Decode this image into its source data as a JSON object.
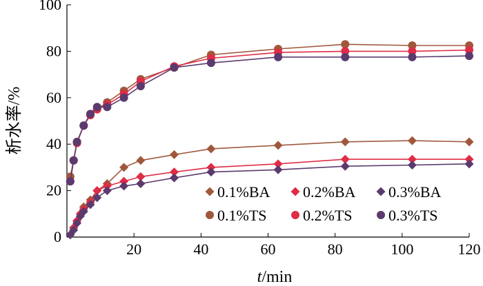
{
  "chart_data": {
    "type": "line",
    "xlabel_italic": "t",
    "xlabel_unit": "/min",
    "ylabel": "析水率/%",
    "xlim": [
      0,
      120
    ],
    "ylim": [
      0,
      100
    ],
    "xticks": [
      20,
      40,
      60,
      80,
      100,
      120
    ],
    "yticks": [
      0,
      20,
      40,
      60,
      80,
      100
    ],
    "grid": false,
    "legend_position": "lower-right",
    "series": [
      {
        "name": "0.1%BA",
        "marker": "diamond",
        "color": "#a0583c",
        "points": [
          [
            1,
            1
          ],
          [
            2,
            4
          ],
          [
            3,
            7
          ],
          [
            4,
            10
          ],
          [
            5,
            13
          ],
          [
            7,
            16
          ],
          [
            9,
            20
          ],
          [
            12,
            23
          ],
          [
            17,
            30
          ],
          [
            22,
            33
          ],
          [
            32,
            35.5
          ],
          [
            43,
            38
          ],
          [
            63,
            39.5
          ],
          [
            83,
            41
          ],
          [
            103,
            41.5
          ],
          [
            120,
            41
          ]
        ]
      },
      {
        "name": "0.2%BA",
        "marker": "diamond",
        "color": "#e02c46",
        "points": [
          [
            1,
            1
          ],
          [
            2,
            4
          ],
          [
            3,
            7
          ],
          [
            4,
            10
          ],
          [
            5,
            12
          ],
          [
            7,
            15
          ],
          [
            9,
            20
          ],
          [
            12,
            22
          ],
          [
            17,
            24
          ],
          [
            22,
            26
          ],
          [
            32,
            28
          ],
          [
            43,
            30
          ],
          [
            63,
            31.5
          ],
          [
            83,
            33.5
          ],
          [
            103,
            33.5
          ],
          [
            120,
            33.5
          ]
        ]
      },
      {
        "name": "0.3%BA",
        "marker": "diamond",
        "color": "#5b3a6e",
        "points": [
          [
            1,
            1
          ],
          [
            2,
            3
          ],
          [
            3,
            6
          ],
          [
            4,
            9
          ],
          [
            5,
            11
          ],
          [
            7,
            14
          ],
          [
            9,
            17
          ],
          [
            12,
            20
          ],
          [
            17,
            22
          ],
          [
            22,
            23
          ],
          [
            32,
            25.5
          ],
          [
            43,
            28
          ],
          [
            63,
            29
          ],
          [
            83,
            30.5
          ],
          [
            103,
            31
          ],
          [
            120,
            31.5
          ]
        ]
      },
      {
        "name": "0.1%TS",
        "marker": "circle",
        "color": "#a0583c",
        "points": [
          [
            1,
            26
          ],
          [
            2,
            33
          ],
          [
            3,
            41
          ],
          [
            5,
            48
          ],
          [
            7,
            53
          ],
          [
            9,
            55
          ],
          [
            12,
            58
          ],
          [
            17,
            63
          ],
          [
            22,
            68
          ],
          [
            32,
            73
          ],
          [
            43,
            78.5
          ],
          [
            63,
            81
          ],
          [
            83,
            83
          ],
          [
            103,
            82.5
          ],
          [
            120,
            82.5
          ]
        ]
      },
      {
        "name": "0.2%TS",
        "marker": "circle",
        "color": "#e02c46",
        "points": [
          [
            1,
            24
          ],
          [
            2,
            33
          ],
          [
            3,
            40.5
          ],
          [
            5,
            48
          ],
          [
            7,
            52.5
          ],
          [
            9,
            55
          ],
          [
            12,
            57
          ],
          [
            17,
            61.5
          ],
          [
            22,
            67
          ],
          [
            32,
            73.5
          ],
          [
            43,
            77
          ],
          [
            63,
            79.5
          ],
          [
            83,
            80
          ],
          [
            103,
            80
          ],
          [
            120,
            80.5
          ]
        ]
      },
      {
        "name": "0.3%TS",
        "marker": "circle",
        "color": "#5b3a6e",
        "points": [
          [
            1,
            24
          ],
          [
            2,
            33
          ],
          [
            3,
            41
          ],
          [
            5,
            48
          ],
          [
            7,
            53
          ],
          [
            9,
            56
          ],
          [
            12,
            56
          ],
          [
            17,
            60
          ],
          [
            22,
            65
          ],
          [
            32,
            73
          ],
          [
            43,
            75
          ],
          [
            63,
            77.5
          ],
          [
            83,
            77.5
          ],
          [
            103,
            77.5
          ],
          [
            120,
            78
          ]
        ]
      }
    ]
  }
}
